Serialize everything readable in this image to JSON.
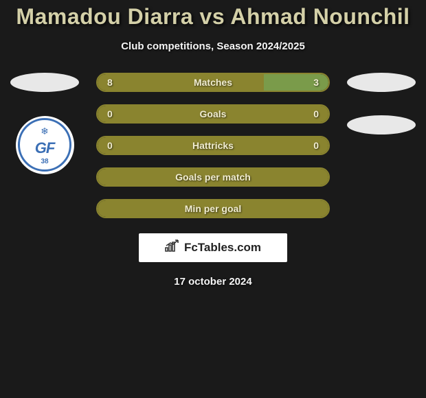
{
  "title": "Mamadou Diarra vs Ahmad Nounchil",
  "subtitle": "Club competitions, Season 2024/2025",
  "date": "17 october 2024",
  "footer_brand": "FcTables.com",
  "colors": {
    "title": "#d4d0a8",
    "text": "#f5f5f5",
    "bar_border": "#8a842f",
    "bar_fill_left": "#8a842f",
    "bar_fill_right": "#7a9b4a",
    "bar_text": "#f0ecd0",
    "bg": "#1a1a1a"
  },
  "left_club": {
    "abbr": "GF",
    "num": "38"
  },
  "bars": [
    {
      "label": "Matches",
      "left_val": "8",
      "right_val": "3",
      "left_pct": 72,
      "right_pct": 28,
      "show_vals": true
    },
    {
      "label": "Goals",
      "left_val": "0",
      "right_val": "0",
      "left_pct": 100,
      "right_pct": 0,
      "show_vals": true
    },
    {
      "label": "Hattricks",
      "left_val": "0",
      "right_val": "0",
      "left_pct": 100,
      "right_pct": 0,
      "show_vals": true
    },
    {
      "label": "Goals per match",
      "left_val": "",
      "right_val": "",
      "left_pct": 100,
      "right_pct": 0,
      "show_vals": false
    },
    {
      "label": "Min per goal",
      "left_val": "",
      "right_val": "",
      "left_pct": 100,
      "right_pct": 0,
      "show_vals": false
    }
  ],
  "bar_style": {
    "height": 28,
    "radius": 14,
    "border_width": 2,
    "font_size": 14
  }
}
